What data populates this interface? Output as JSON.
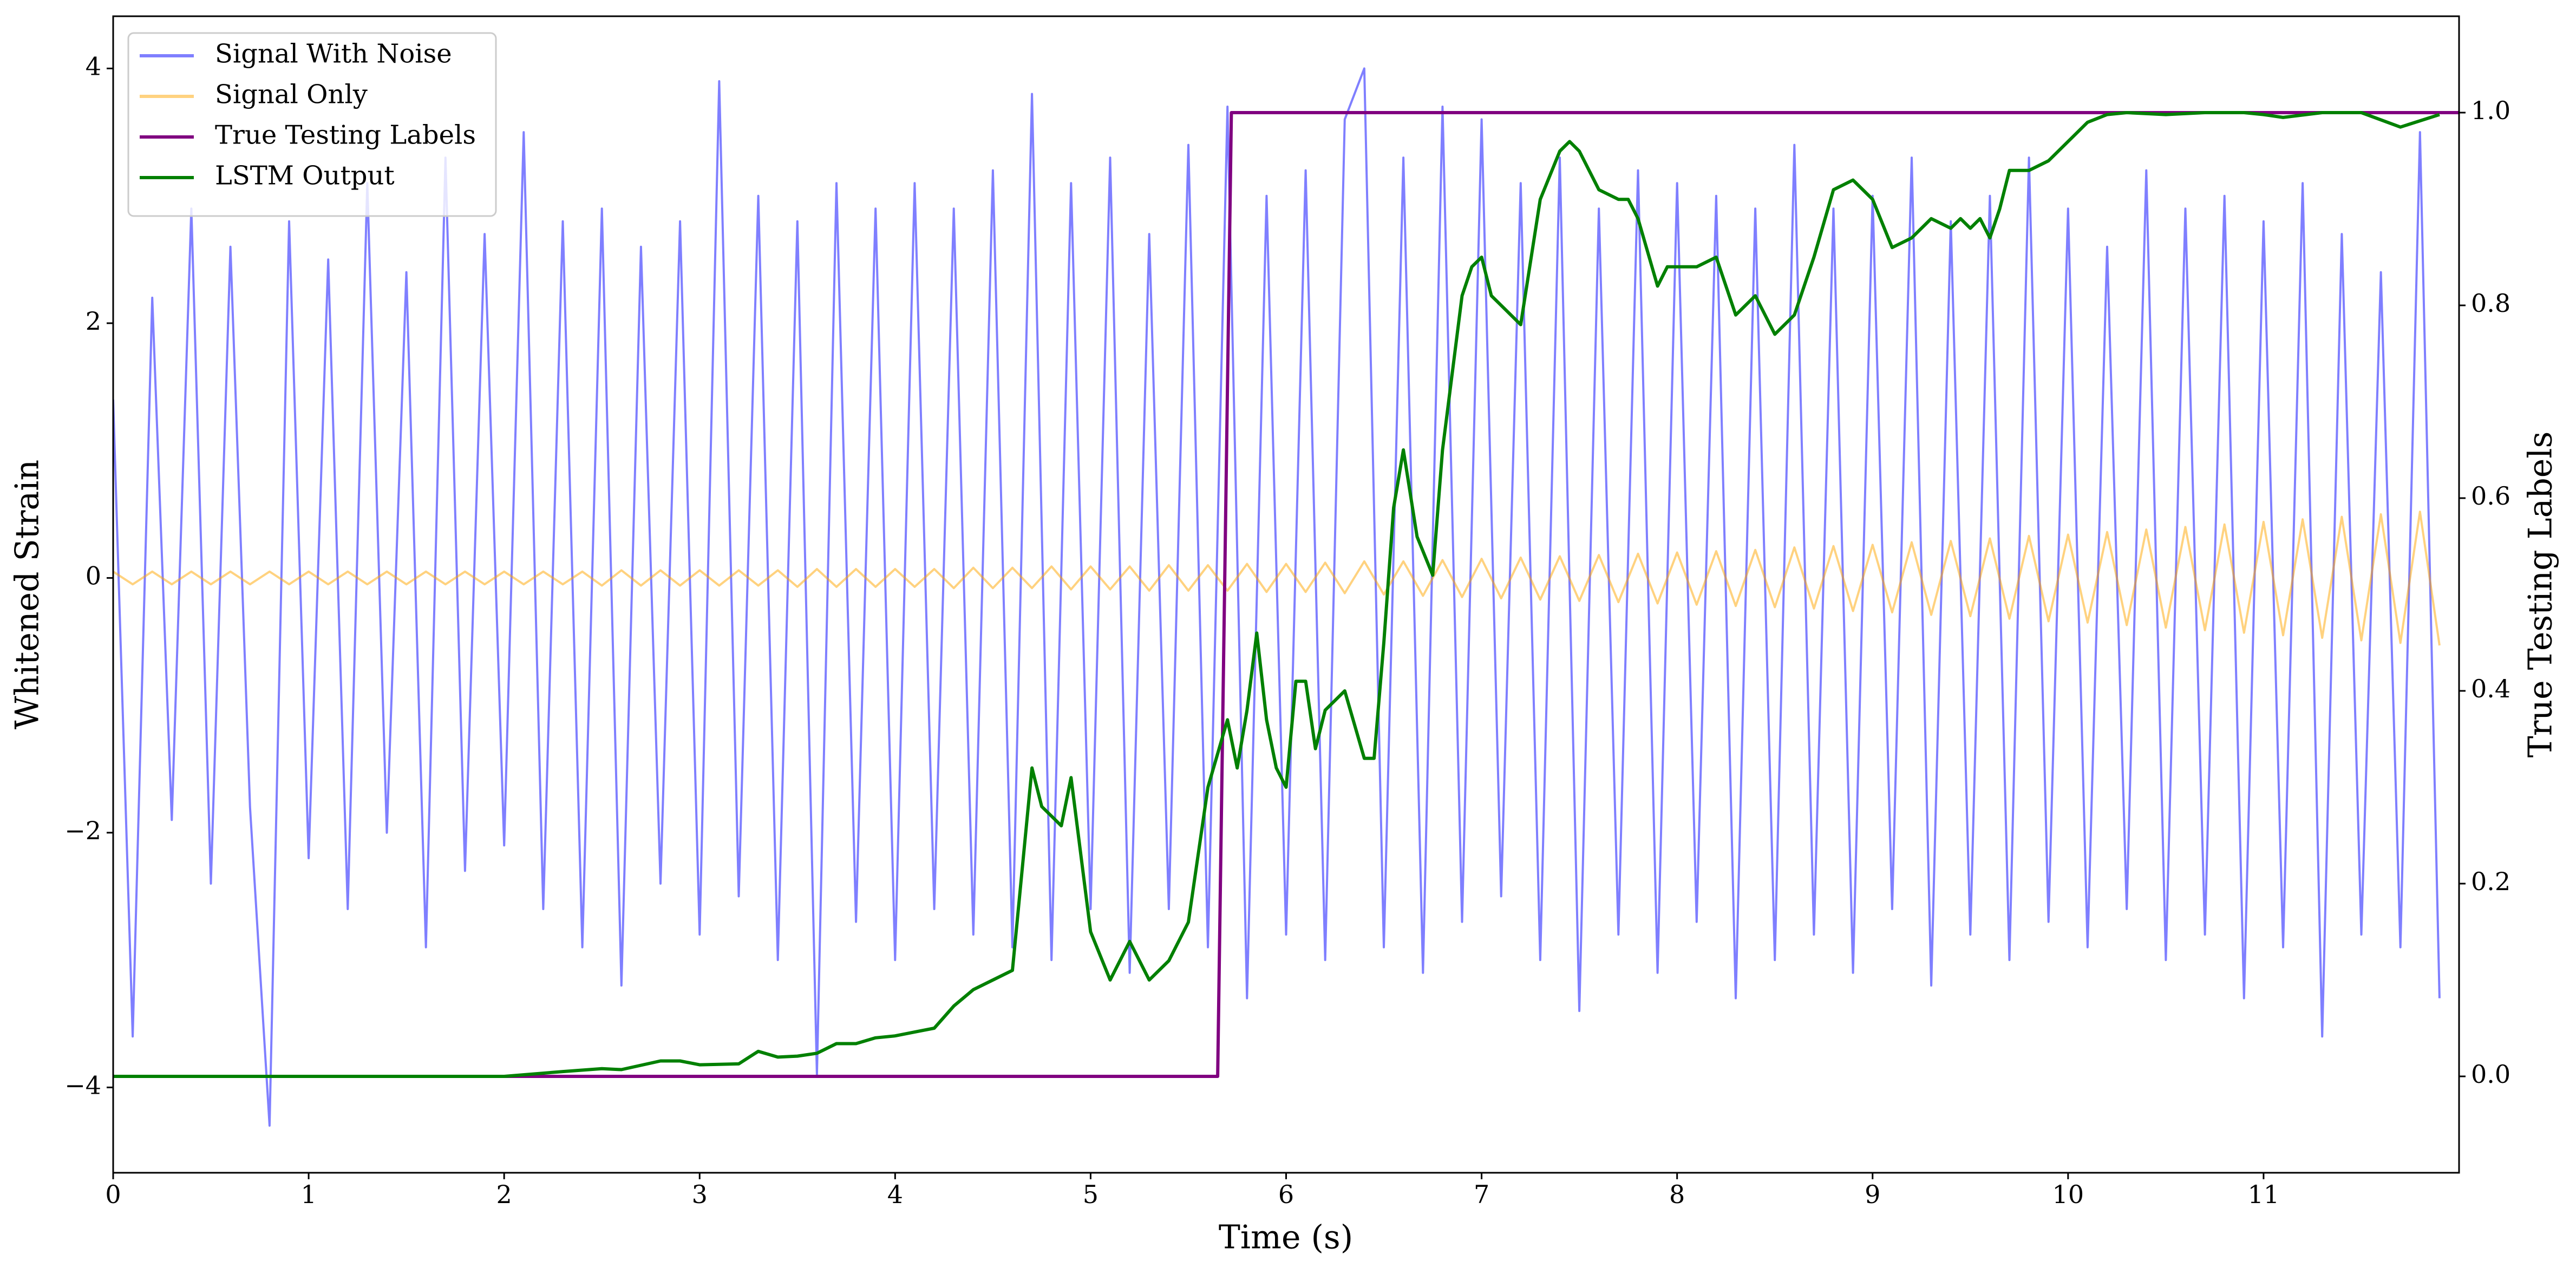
{
  "chart_data": {
    "type": "line",
    "xlabel": "Time (s)",
    "ylabel": "Whitened Strain",
    "y2label": "True Testing Labels",
    "xlim": [
      0,
      12.0
    ],
    "ylim": [
      -4.67,
      4.41
    ],
    "y2lim": [
      -0.1,
      1.1
    ],
    "xticks": [
      0,
      1,
      2,
      3,
      4,
      5,
      6,
      7,
      8,
      9,
      10,
      11
    ],
    "yticks": [
      {
        "value": -4,
        "label": "−4"
      },
      {
        "value": -2,
        "label": "−2"
      },
      0,
      2,
      4
    ],
    "y2ticks": [
      {
        "value": 0,
        "label": "0.0"
      },
      0.2,
      0.4,
      0.6,
      0.8,
      {
        "value": 1,
        "label": "1.0"
      }
    ],
    "legend": "upper left",
    "x": [
      0,
      0.1,
      0.2,
      0.3,
      0.4,
      0.5,
      0.6,
      0.7,
      0.8,
      0.9,
      1,
      1.1,
      1.2,
      1.3,
      1.4,
      1.5,
      1.6,
      1.7,
      1.8,
      1.9,
      2,
      2.1,
      2.2,
      2.3,
      2.4,
      2.5,
      2.6,
      2.7,
      2.8,
      2.9,
      3,
      3.1,
      3.2,
      3.3,
      3.4,
      3.5,
      3.6,
      3.7,
      3.8,
      3.9,
      4,
      4.1,
      4.2,
      4.3,
      4.4,
      4.5,
      4.6,
      4.7,
      4.8,
      4.9,
      5,
      5.1,
      5.2,
      5.3,
      5.4,
      5.5,
      5.6,
      5.7,
      5.8,
      5.9,
      6,
      6.1,
      6.2,
      6.3,
      6.4,
      6.5,
      6.6,
      6.7,
      6.8,
      6.9,
      7,
      7.1,
      7.2,
      7.3,
      7.4,
      7.5,
      7.6,
      7.7,
      7.8,
      7.9,
      8,
      8.1,
      8.2,
      8.3,
      8.4,
      8.5,
      8.6,
      8.7,
      8.8,
      8.9,
      9,
      9.1,
      9.2,
      9.3,
      9.4,
      9.5,
      9.6,
      9.7,
      9.8,
      9.9,
      10,
      10.1,
      10.2,
      10.3,
      10.4,
      10.5,
      10.6,
      10.7,
      10.8,
      10.9,
      11,
      11.1,
      11.2,
      11.3,
      11.4,
      11.5,
      11.6,
      11.7,
      11.8,
      11.9
    ],
    "series": [
      {
        "name": "Signal With Noise",
        "color": "#0000ff",
        "alpha": 0.5,
        "values": [
          1.4,
          -3.6,
          2.2,
          -1.9,
          2.9,
          -2.4,
          2.6,
          -1.8,
          -4.3,
          2.8,
          -2.2,
          2.5,
          -2.6,
          3.1,
          -2.0,
          2.4,
          -2.9,
          3.3,
          -2.3,
          2.7,
          -2.1,
          3.5,
          -2.6,
          2.8,
          -2.9,
          2.9,
          -3.2,
          2.6,
          -2.4,
          2.8,
          -2.8,
          3.9,
          -2.5,
          3.0,
          -3.0,
          2.8,
          -3.9,
          3.1,
          -2.7,
          2.9,
          -3.0,
          3.1,
          -2.6,
          2.9,
          -2.8,
          3.2,
          -2.9,
          3.8,
          -3.0,
          3.1,
          -2.6,
          3.3,
          -3.1,
          2.7,
          -2.6,
          3.4,
          -2.9,
          3.7,
          -3.3,
          3.0,
          -2.8,
          3.2,
          -3.0,
          3.6,
          4.0,
          -2.9,
          3.3,
          -3.1,
          3.7,
          -2.7,
          3.6,
          -2.5,
          3.1,
          -3.0,
          3.3,
          -3.4,
          2.9,
          -2.8,
          3.2,
          -3.1,
          3.1,
          -2.7,
          3.0,
          -3.3,
          2.9,
          -3.0,
          3.4,
          -2.8,
          2.9,
          -3.1,
          3.0,
          -2.6,
          3.3,
          -3.2,
          2.8,
          -2.8,
          3.0,
          -3.0,
          3.3,
          -2.7,
          2.9,
          -2.9,
          2.6,
          -2.6,
          3.2,
          -3.0,
          2.9,
          -2.8,
          3.0,
          -3.3,
          2.8,
          -2.9,
          3.1,
          -3.6,
          2.7,
          -2.8,
          2.4,
          -2.9,
          3.5,
          -3.3
        ]
      },
      {
        "name": "Signal Only",
        "color": "#ffa500",
        "alpha": 0.5,
        "values": [
          0.05,
          -0.05,
          0.05,
          -0.05,
          0.05,
          -0.05,
          0.05,
          -0.05,
          0.05,
          -0.05,
          0.05,
          -0.05,
          0.05,
          -0.05,
          0.05,
          -0.05,
          0.05,
          -0.05,
          0.05,
          -0.05,
          0.05,
          -0.05,
          0.05,
          -0.05,
          0.05,
          -0.06,
          0.06,
          -0.06,
          0.06,
          -0.06,
          0.06,
          -0.06,
          0.06,
          -0.06,
          0.06,
          -0.07,
          0.07,
          -0.07,
          0.07,
          -0.07,
          0.07,
          -0.07,
          0.07,
          -0.08,
          0.08,
          -0.08,
          0.08,
          -0.08,
          0.09,
          -0.09,
          0.09,
          -0.09,
          0.09,
          -0.1,
          0.1,
          -0.1,
          0.1,
          -0.1,
          0.11,
          -0.11,
          0.11,
          -0.11,
          0.12,
          -0.12,
          0.13,
          -0.13,
          0.13,
          -0.14,
          0.14,
          -0.15,
          0.15,
          -0.16,
          0.16,
          -0.17,
          0.17,
          -0.18,
          0.18,
          -0.19,
          0.19,
          -0.2,
          0.2,
          -0.21,
          0.21,
          -0.22,
          0.22,
          -0.23,
          0.24,
          -0.24,
          0.25,
          -0.26,
          0.26,
          -0.27,
          0.28,
          -0.29,
          0.29,
          -0.3,
          0.31,
          -0.32,
          0.33,
          -0.34,
          0.34,
          -0.35,
          0.36,
          -0.37,
          0.38,
          -0.39,
          0.4,
          -0.41,
          0.42,
          -0.43,
          0.44,
          -0.45,
          0.46,
          -0.47,
          0.48,
          -0.49,
          0.5,
          -0.51,
          0.52,
          -0.53
        ]
      },
      {
        "name": "True Testing Labels",
        "color": "#800080",
        "axis": "y2",
        "x": [
          0,
          5.65,
          5.72,
          12.0
        ],
        "values": [
          0,
          0,
          1,
          1
        ]
      },
      {
        "name": "LSTM Output",
        "color": "#008000",
        "axis": "y2",
        "x": [
          0,
          1,
          2,
          2.3,
          2.5,
          2.6,
          2.8,
          2.9,
          3.0,
          3.2,
          3.3,
          3.4,
          3.5,
          3.6,
          3.7,
          3.8,
          3.9,
          4.0,
          4.1,
          4.2,
          4.3,
          4.4,
          4.5,
          4.6,
          4.7,
          4.75,
          4.8,
          4.85,
          4.9,
          5.0,
          5.1,
          5.2,
          5.3,
          5.4,
          5.5,
          5.6,
          5.7,
          5.75,
          5.8,
          5.85,
          5.9,
          5.95,
          6.0,
          6.05,
          6.1,
          6.15,
          6.2,
          6.3,
          6.4,
          6.45,
          6.5,
          6.55,
          6.6,
          6.67,
          6.75,
          6.8,
          6.9,
          6.95,
          7.0,
          7.05,
          7.1,
          7.2,
          7.3,
          7.4,
          7.45,
          7.5,
          7.6,
          7.7,
          7.75,
          7.8,
          7.9,
          7.95,
          8.0,
          8.1,
          8.2,
          8.3,
          8.4,
          8.5,
          8.6,
          8.7,
          8.8,
          8.9,
          9.0,
          9.1,
          9.2,
          9.3,
          9.4,
          9.45,
          9.5,
          9.55,
          9.6,
          9.65,
          9.7,
          9.8,
          9.9,
          10.0,
          10.1,
          10.2,
          10.3,
          10.5,
          10.7,
          10.9,
          11.0,
          11.1,
          11.3,
          11.5,
          11.7,
          11.9
        ],
        "values": [
          0,
          0,
          0,
          0.005,
          0.008,
          0.007,
          0.016,
          0.016,
          0.012,
          0.013,
          0.026,
          0.02,
          0.021,
          0.024,
          0.034,
          0.034,
          0.04,
          0.042,
          0.046,
          0.05,
          0.073,
          0.09,
          0.1,
          0.11,
          0.32,
          0.28,
          0.27,
          0.26,
          0.31,
          0.15,
          0.1,
          0.14,
          0.1,
          0.12,
          0.16,
          0.3,
          0.37,
          0.32,
          0.38,
          0.46,
          0.37,
          0.32,
          0.3,
          0.41,
          0.41,
          0.34,
          0.38,
          0.4,
          0.33,
          0.33,
          0.45,
          0.59,
          0.65,
          0.56,
          0.52,
          0.65,
          0.81,
          0.84,
          0.85,
          0.81,
          0.8,
          0.78,
          0.91,
          0.96,
          0.97,
          0.96,
          0.92,
          0.91,
          0.91,
          0.89,
          0.82,
          0.84,
          0.84,
          0.84,
          0.85,
          0.79,
          0.81,
          0.77,
          0.79,
          0.85,
          0.92,
          0.93,
          0.91,
          0.86,
          0.87,
          0.89,
          0.88,
          0.89,
          0.88,
          0.89,
          0.87,
          0.9,
          0.94,
          0.94,
          0.95,
          0.97,
          0.99,
          0.998,
          1.0,
          0.998,
          1.0,
          1.0,
          0.998,
          0.995,
          1.0,
          1.0,
          0.985,
          0.998
        ]
      }
    ]
  }
}
